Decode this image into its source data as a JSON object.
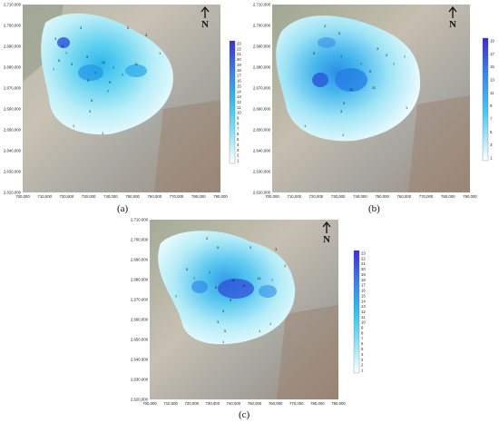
{
  "figure": {
    "y_ticks": [
      "2,710,000",
      "2,700,000",
      "2,690,000",
      "2,680,000",
      "2,670,000",
      "2,660,000",
      "2,650,000",
      "2,640,000",
      "2,630,000",
      "2,620,000"
    ],
    "x_ticks": [
      "700,000",
      "710,000",
      "720,000",
      "730,000",
      "740,000",
      "750,000",
      "760,000",
      "770,000",
      "780,000",
      "790,000"
    ],
    "north_label": "N",
    "colors": {
      "background": "#ffffff",
      "terrain_light": "#c9c2b4",
      "terrain_green": "#8f9a86",
      "terrain_brown": "#9a7f6a",
      "plume_low": "#e9fbfe",
      "plume_mid": "#45c9ee",
      "plume_high": "#3f2fd6"
    }
  },
  "panels": [
    {
      "label": "(a)",
      "colorbar_ticks": [
        "23",
        "22",
        "21",
        "20",
        "19",
        "18",
        "17",
        "16",
        "15",
        "14",
        "13",
        "12",
        "11",
        "10",
        "9",
        "8",
        "7",
        "6",
        "5",
        "4",
        "3",
        "2",
        "1"
      ],
      "contour_labels": [
        "3",
        "3",
        "5",
        "7",
        "5",
        "7",
        "3",
        "9",
        "11",
        "7",
        "5",
        "7",
        "7",
        "11",
        "9",
        "7",
        "5",
        "3",
        "1",
        "1",
        "1",
        "3",
        "5"
      ]
    },
    {
      "label": "(b)",
      "colorbar_ticks": [
        "19",
        "17",
        "15",
        "13",
        "11",
        "9",
        "7",
        "5",
        "3",
        "1"
      ],
      "contour_labels": [
        "3",
        "5",
        "5",
        "7",
        "7",
        "9",
        "11",
        "11",
        "7",
        "7",
        "3",
        "5",
        "3",
        "1",
        "1",
        "1",
        "3"
      ]
    },
    {
      "label": "(c)",
      "colorbar_ticks": [
        "23",
        "22",
        "21",
        "20",
        "19",
        "18",
        "17",
        "16",
        "15",
        "14",
        "13",
        "12",
        "11",
        "10",
        "9",
        "8",
        "7",
        "6",
        "5",
        "4",
        "3",
        "2",
        "1"
      ],
      "contour_labels": [
        "3",
        "5",
        "5",
        "7",
        "7",
        "9",
        "11",
        "11",
        "13",
        "7",
        "5",
        "3",
        "3",
        "5",
        "7",
        "1",
        "1",
        "3",
        "3",
        "1",
        "1"
      ]
    }
  ]
}
